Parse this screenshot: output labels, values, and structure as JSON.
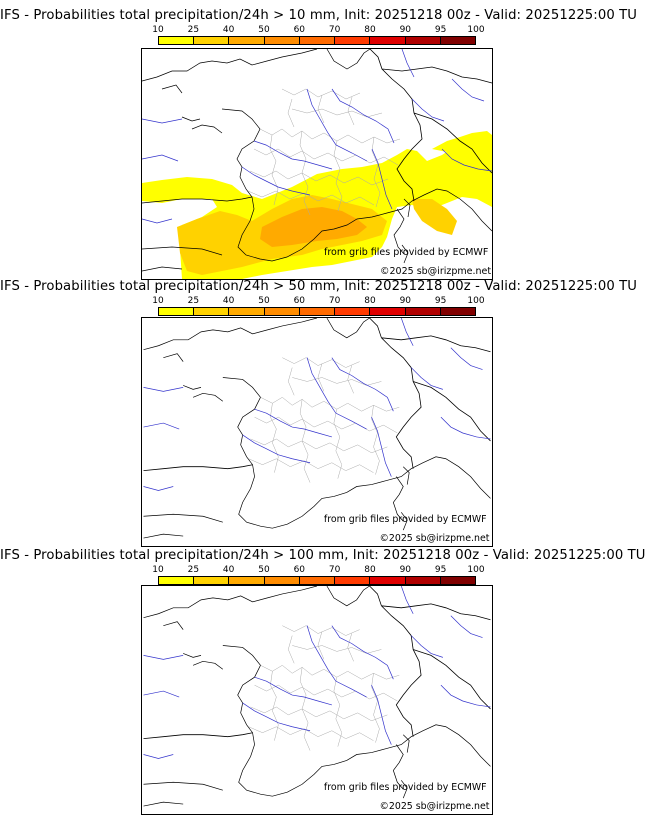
{
  "chart_data": [
    {
      "type": "heatmap",
      "title": "IFS - Probabilities total precipitation/24h > 10 mm, Init: 20251218 00z - Valid: 20251225:00 TU",
      "colorbar_ticks": [
        "10",
        "25",
        "40",
        "50",
        "60",
        "70",
        "80",
        "90",
        "95",
        "100"
      ],
      "colorbar_colors": [
        "#ffff00",
        "#ffd200",
        "#ffaa00",
        "#ff8c00",
        "#ff6a00",
        "#ff3a00",
        "#e00000",
        "#b00000",
        "#800000"
      ],
      "precip_levels": {
        "yellow": "10-25",
        "light_orange": "25-40",
        "orange": "40-50"
      },
      "credit_source": "from grib files provided by ECMWF",
      "credit_copyright": "©2025 sb@irizpme.net"
    },
    {
      "type": "heatmap",
      "title": "IFS - Probabilities total precipitation/24h > 50 mm, Init: 20251218 00z - Valid: 20251225:00 TU",
      "colorbar_ticks": [
        "10",
        "25",
        "40",
        "50",
        "60",
        "70",
        "80",
        "90",
        "95",
        "100"
      ],
      "colorbar_colors": [
        "#ffff00",
        "#ffd200",
        "#ffaa00",
        "#ff8c00",
        "#ff6a00",
        "#ff3a00",
        "#e00000",
        "#b00000",
        "#800000"
      ],
      "credit_source": "from grib files provided by ECMWF",
      "credit_copyright": "©2025 sb@irizpme.net"
    },
    {
      "type": "heatmap",
      "title": "IFS - Probabilities total precipitation/24h > 100 mm, Init: 20251218 00z - Valid: 20251225:00 TU",
      "colorbar_ticks": [
        "10",
        "25",
        "40",
        "50",
        "60",
        "70",
        "80",
        "90",
        "95",
        "100"
      ],
      "colorbar_colors": [
        "#ffff00",
        "#ffd200",
        "#ffaa00",
        "#ff8c00",
        "#ff6a00",
        "#ff3a00",
        "#e00000",
        "#b00000",
        "#800000"
      ],
      "credit_source": "from grib files provided by ECMWF",
      "credit_copyright": "©2025 sb@irizpme.net"
    }
  ],
  "map_colors": {
    "coast": "#000000",
    "rivers": "#3333cc",
    "borders": "#aaaaaa"
  }
}
